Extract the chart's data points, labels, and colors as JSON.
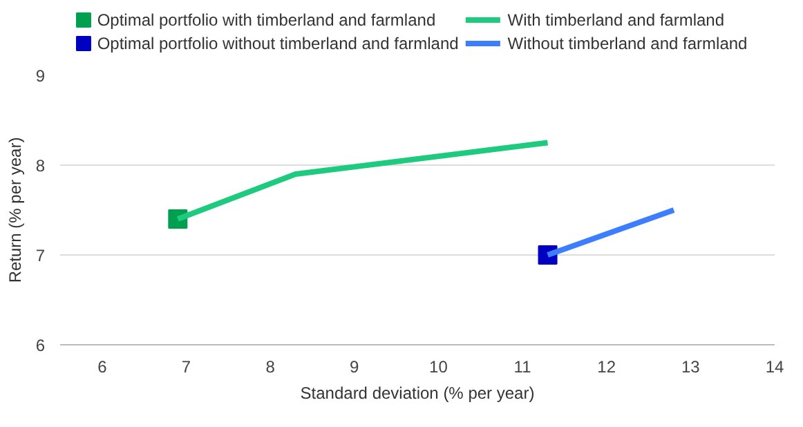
{
  "chart_data": {
    "type": "line",
    "xlabel": "Standard deviation (% per year)",
    "ylabel": "Return (% per year)",
    "xlim": [
      5.5,
      14
    ],
    "xticks": [
      6,
      7,
      8,
      9,
      10,
      11,
      12,
      13,
      14
    ],
    "ylim": [
      6,
      9
    ],
    "yticks": [
      6,
      7,
      8,
      9
    ],
    "grid": "y",
    "legend": "top",
    "series": [
      {
        "name": "Optimal portfolio with timberland and farmland",
        "type": "scatter",
        "marker": "square",
        "color": "#00a050",
        "x": [
          6.9
        ],
        "values": [
          7.4
        ]
      },
      {
        "name": "Optimal portfolio without timberland and farmland",
        "type": "scatter",
        "marker": "square",
        "color": "#0000c0",
        "x": [
          11.3
        ],
        "values": [
          7.0
        ]
      },
      {
        "name": "With timberland and farmland",
        "color": "#1ecb7e",
        "x": [
          6.9,
          8.3,
          11.3
        ],
        "values": [
          7.4,
          7.9,
          8.25
        ]
      },
      {
        "name": "Without timberland and farmland",
        "color": "#3d7eff",
        "x": [
          11.3,
          12.8
        ],
        "values": [
          7.0,
          7.5
        ]
      }
    ]
  }
}
